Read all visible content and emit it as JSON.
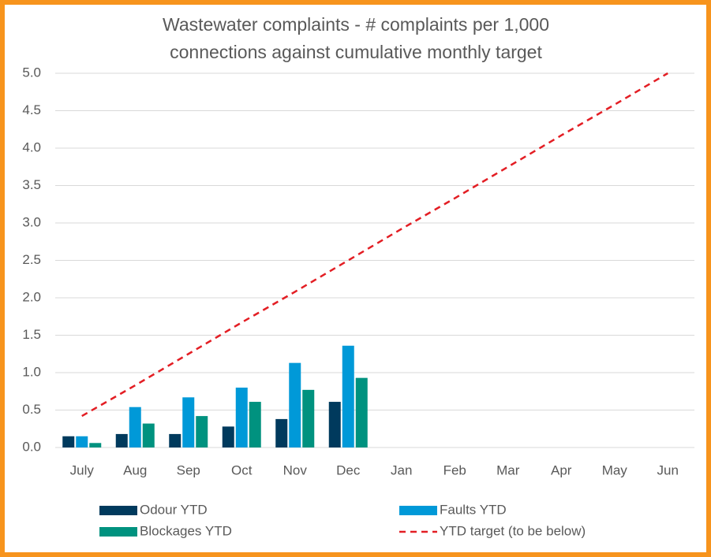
{
  "chart_data": {
    "type": "bar",
    "title": [
      "Wastewater complaints - # complaints per 1,000",
      "connections against cumulative monthly target"
    ],
    "categories": [
      "July",
      "Aug",
      "Sep",
      "Oct",
      "Nov",
      "Dec",
      "Jan",
      "Feb",
      "Mar",
      "Apr",
      "May",
      "Jun"
    ],
    "series": [
      {
        "name": "Odour YTD",
        "type": "bar",
        "color": "#003a5d",
        "values": [
          0.15,
          0.18,
          0.18,
          0.28,
          0.38,
          0.61,
          null,
          null,
          null,
          null,
          null,
          null
        ]
      },
      {
        "name": "Faults YTD",
        "type": "bar",
        "color": "#0099d8",
        "values": [
          0.15,
          0.54,
          0.67,
          0.8,
          1.13,
          1.36,
          null,
          null,
          null,
          null,
          null,
          null
        ]
      },
      {
        "name": "Blockages YTD",
        "type": "bar",
        "color": "#00927f",
        "values": [
          0.06,
          0.32,
          0.42,
          0.61,
          0.77,
          0.93,
          null,
          null,
          null,
          null,
          null,
          null
        ]
      },
      {
        "name": "YTD target (to be below)",
        "type": "line",
        "dashed": true,
        "color": "#e31e24",
        "values": [
          0.42,
          0.83,
          1.25,
          1.67,
          2.08,
          2.5,
          2.92,
          3.33,
          3.75,
          4.17,
          4.58,
          5.0
        ]
      }
    ],
    "ylim": [
      0,
      5
    ],
    "yticks": [
      {
        "value": 0,
        "label": "0.0"
      },
      0.5,
      {
        "value": 1,
        "label": "1.0"
      },
      1.5,
      {
        "value": 2,
        "label": "2.0"
      },
      2.5,
      {
        "value": 3,
        "label": "3.0"
      },
      3.5,
      {
        "value": 4,
        "label": "4.0"
      },
      4.5,
      {
        "value": 5,
        "label": "5.0"
      }
    ],
    "grid": true,
    "legend": "bottom"
  }
}
